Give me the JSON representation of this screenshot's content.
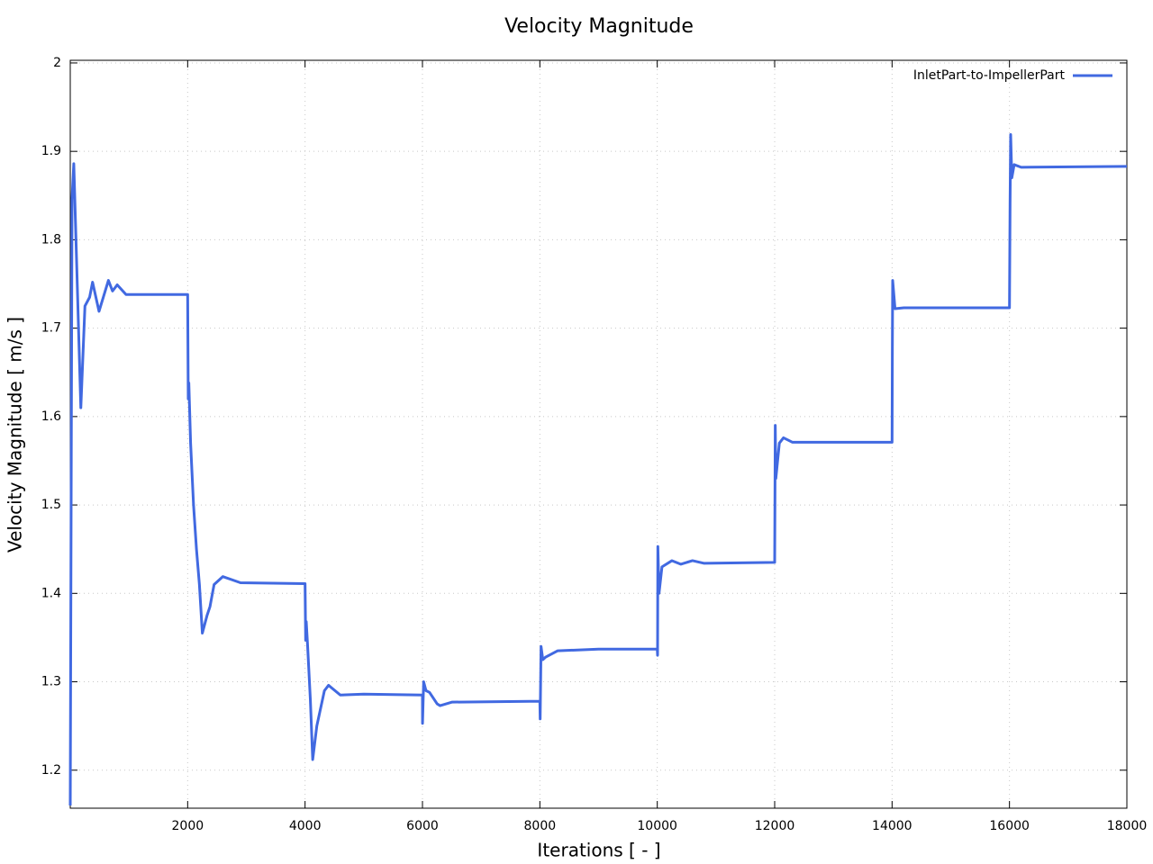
{
  "chart_data": {
    "type": "line",
    "title": "Velocity Magnitude",
    "x_label": "Iterations [ - ]",
    "y_label": "Velocity Magnitude [ m/s ]",
    "xlim": [
      0,
      18000
    ],
    "ylim": [
      1.157,
      2.003
    ],
    "xticks": [
      2000,
      4000,
      6000,
      8000,
      10000,
      12000,
      14000,
      16000,
      18000
    ],
    "yticks": [
      1.2,
      1.3,
      1.4,
      1.5,
      1.6,
      1.7,
      1.8,
      1.9,
      2
    ],
    "grid": true,
    "legend": "top-right",
    "x": [
      0,
      30,
      60,
      180,
      250,
      330,
      380,
      490,
      650,
      720,
      800,
      950,
      2000,
      2010,
      2020,
      2050,
      2100,
      2150,
      2200,
      2250,
      2330,
      2380,
      2450,
      2600,
      2900,
      4000,
      4010,
      4020,
      4040,
      4090,
      4130,
      4200,
      4330,
      4400,
      4600,
      5000,
      6000,
      6001,
      6020,
      6060,
      6120,
      6250,
      6300,
      6500,
      8000,
      8005,
      8020,
      8050,
      8100,
      8300,
      9000,
      10000,
      10005,
      10010,
      10030,
      10080,
      10250,
      10400,
      10600,
      10800,
      12000,
      12010,
      12020,
      12080,
      12150,
      12300,
      14000,
      14005,
      14010,
      14050,
      14200,
      16000,
      16010,
      16020,
      16040,
      16080,
      16200,
      18000
    ],
    "series": [
      {
        "name": "InletPart-to-ImpellerPart",
        "color": "#4169e1",
        "values": [
          1.16,
          1.846,
          1.886,
          1.61,
          1.725,
          1.735,
          1.752,
          1.719,
          1.754,
          1.742,
          1.749,
          1.738,
          1.738,
          1.62,
          1.638,
          1.57,
          1.5,
          1.45,
          1.41,
          1.355,
          1.375,
          1.385,
          1.41,
          1.419,
          1.412,
          1.411,
          1.347,
          1.368,
          1.345,
          1.28,
          1.212,
          1.25,
          1.29,
          1.296,
          1.285,
          1.286,
          1.285,
          1.253,
          1.3,
          1.29,
          1.288,
          1.275,
          1.273,
          1.277,
          1.278,
          1.258,
          1.34,
          1.325,
          1.328,
          1.335,
          1.337,
          1.337,
          1.33,
          1.453,
          1.4,
          1.43,
          1.437,
          1.433,
          1.437,
          1.434,
          1.435,
          1.59,
          1.53,
          1.57,
          1.576,
          1.571,
          1.571,
          1.68,
          1.754,
          1.722,
          1.723,
          1.723,
          1.84,
          1.919,
          1.87,
          1.885,
          1.882,
          1.883
        ]
      }
    ]
  }
}
